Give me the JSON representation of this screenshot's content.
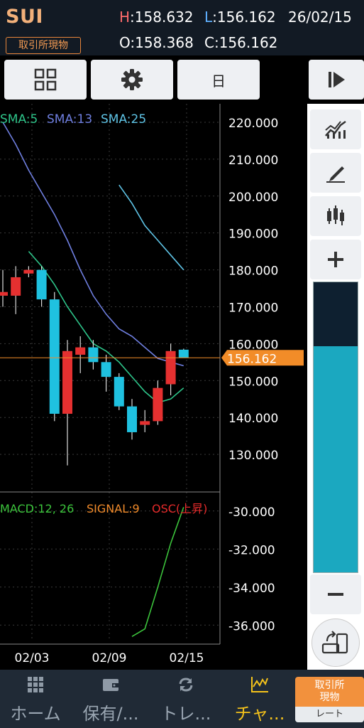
{
  "header": {
    "symbol": "SUI",
    "market_badge": "取引所現物",
    "high_key": "H",
    "high_value": ":158.632",
    "low_key": "L",
    "low_value": ":156.162",
    "date": "26/02/15",
    "open": "O:158.368",
    "close": "C:156.162"
  },
  "toolbar": {
    "period_label": "日"
  },
  "colors": {
    "up": "#e53030",
    "down": "#1fc1e0",
    "sma5": "#2ec58a",
    "sma13": "#6f7fe0",
    "sma25": "#5fc4e6",
    "price_tag": "#f28c28",
    "macd": "#3cc43c",
    "signal": "#f08a2a",
    "osc": "#e52a2a"
  },
  "chart_data": [
    {
      "type": "candlestick",
      "legend": [
        "SMA:5",
        "SMA:13",
        "SMA:25"
      ],
      "ylim": [
        120,
        225
      ],
      "y_ticks": [
        "220.000",
        "210.000",
        "200.000",
        "190.000",
        "180.000",
        "170.000",
        "160.000",
        "150.000",
        "140.000",
        "130.000"
      ],
      "x_ticks": [
        "02/03",
        "02/09",
        "02/15"
      ],
      "current_price": "156.162",
      "candles": [
        {
          "o": 173,
          "h": 180,
          "l": 170,
          "c": 174
        },
        {
          "o": 173,
          "h": 181,
          "l": 168,
          "c": 178
        },
        {
          "o": 179,
          "h": 181,
          "l": 178,
          "c": 180
        },
        {
          "o": 180,
          "h": 181,
          "l": 170,
          "c": 172
        },
        {
          "o": 172,
          "h": 174,
          "l": 139,
          "c": 141
        },
        {
          "o": 141,
          "h": 161,
          "l": 127,
          "c": 158
        },
        {
          "o": 157,
          "h": 162,
          "l": 152,
          "c": 159
        },
        {
          "o": 159,
          "h": 161,
          "l": 153,
          "c": 155
        },
        {
          "o": 155,
          "h": 157,
          "l": 147,
          "c": 151
        },
        {
          "o": 151,
          "h": 152,
          "l": 142,
          "c": 143
        },
        {
          "o": 143,
          "h": 145,
          "l": 134,
          "c": 136
        },
        {
          "o": 138,
          "h": 142,
          "l": 136,
          "c": 139
        },
        {
          "o": 139,
          "h": 150,
          "l": 138,
          "c": 148
        },
        {
          "o": 149,
          "h": 160,
          "l": 146,
          "c": 158
        },
        {
          "o": 158.368,
          "h": 158.632,
          "l": 156.162,
          "c": 156.162
        }
      ],
      "sma5": [
        null,
        null,
        185,
        181,
        176,
        170,
        165,
        160,
        158,
        155,
        151,
        147,
        144,
        145,
        148
      ],
      "sma13": [
        220,
        214,
        207,
        201,
        195,
        188,
        180,
        173,
        168,
        164,
        162,
        159,
        156,
        155,
        154
      ],
      "sma25": [
        null,
        null,
        null,
        null,
        null,
        null,
        null,
        null,
        null,
        203,
        198,
        192,
        188,
        184,
        180
      ]
    },
    {
      "type": "line",
      "legend": [
        "MACD:12, 26",
        "SIGNAL:9",
        "OSC(上昇)"
      ],
      "ylim": [
        -37,
        -29
      ],
      "y_ticks": [
        "-30.000",
        "-32.000",
        "-34.000",
        "-36.000"
      ],
      "macd": [
        null,
        null,
        null,
        null,
        null,
        null,
        null,
        null,
        null,
        null,
        -36.6,
        -36.2,
        -34,
        -31.7,
        -29.8
      ]
    }
  ],
  "side_panel": {
    "zoom_level": 0.78
  },
  "nav": {
    "items": [
      {
        "label": "ホーム"
      },
      {
        "label": "保有/..."
      },
      {
        "label": "トレ..."
      },
      {
        "label": "チャ..."
      }
    ],
    "trade_top": "取引所\n現物",
    "trade_bottom": "レート"
  }
}
